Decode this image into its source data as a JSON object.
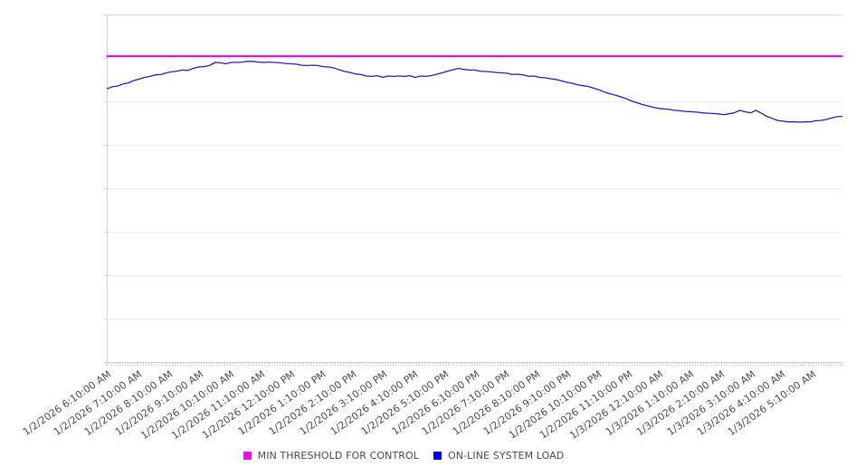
{
  "chart_data": {
    "type": "line",
    "title": "",
    "xlabel": "",
    "ylabel": "",
    "legend_position": "bottom",
    "grid": "horizontal",
    "y_axis": {
      "labels_visible": false,
      "min": 0,
      "max": 100,
      "gridline_step": 12.5
    },
    "x_labels": [
      "1/2/2026 6:10:00 AM",
      "1/2/2026 7:10:00 AM",
      "1/2/2026 8:10:00 AM",
      "1/2/2026 9:10:00 AM",
      "1/2/2026 10:10:00 AM",
      "1/2/2026 11:10:00 AM",
      "1/2/2026 12:10:00 PM",
      "1/2/2026 1:10:00 PM",
      "1/2/2026 2:10:00 PM",
      "1/2/2026 3:10:00 PM",
      "1/2/2026 4:10:00 PM",
      "1/2/2026 5:10:00 PM",
      "1/2/2026 6:10:00 PM",
      "1/2/2026 7:10:00 PM",
      "1/2/2026 8:10:00 PM",
      "1/2/2026 9:10:00 PM",
      "1/2/2026 10:10:00 PM",
      "1/2/2026 11:10:00 PM",
      "1/3/2026 12:10:00 AM",
      "1/3/2026 1:10:00 AM",
      "1/3/2026 2:10:00 AM",
      "1/3/2026 3:10:00 AM",
      "1/3/2026 4:10:00 AM",
      "1/3/2026 5:10:00 AM"
    ],
    "series": [
      {
        "name": "MIN THRESHOLD FOR CONTROL",
        "type": "threshold",
        "color": "#e600e6",
        "legend_color": "#ff00ff",
        "value": 88.0
      },
      {
        "name": "ON-LINE SYSTEM LOAD",
        "type": "line",
        "color": "#2222b8",
        "legend_color": "#0000ee",
        "values": [
          78.6,
          79.2,
          79.4,
          80.0,
          80.3,
          81.0,
          81.4,
          81.9,
          82.2,
          82.6,
          82.7,
          83.2,
          83.5,
          83.7,
          84.0,
          83.9,
          84.5,
          84.9,
          85.0,
          85.3,
          86.2,
          86.1,
          85.8,
          86.2,
          86.2,
          86.3,
          86.5,
          86.5,
          86.3,
          86.2,
          86.3,
          86.2,
          86.1,
          85.9,
          85.8,
          85.7,
          85.4,
          85.3,
          85.4,
          85.3,
          85.0,
          84.9,
          84.6,
          84.1,
          83.6,
          83.3,
          82.9,
          82.7,
          82.3,
          82.2,
          82.4,
          81.9,
          82.3,
          82.2,
          82.3,
          82.2,
          82.4,
          81.9,
          82.3,
          82.2,
          82.4,
          82.8,
          83.2,
          83.7,
          84.1,
          84.5,
          84.2,
          84.0,
          84.0,
          83.7,
          83.6,
          83.5,
          83.3,
          83.2,
          83.1,
          82.7,
          82.8,
          82.6,
          82.2,
          82.3,
          81.9,
          81.8,
          81.5,
          81.3,
          80.9,
          80.5,
          80.2,
          79.8,
          79.5,
          79.3,
          78.8,
          78.3,
          77.7,
          77.2,
          76.8,
          76.3,
          75.8,
          75.1,
          74.6,
          74.1,
          73.7,
          73.3,
          73.0,
          72.8,
          72.7,
          72.4,
          72.3,
          72.1,
          72.0,
          71.9,
          71.7,
          71.6,
          71.5,
          71.4,
          71.2,
          71.4,
          71.7,
          72.4,
          72.0,
          71.7,
          72.4,
          71.6,
          70.7,
          70.1,
          69.5,
          69.3,
          69.1,
          69.1,
          69.0,
          69.1,
          69.1,
          69.4,
          69.5,
          69.8,
          70.2,
          70.6,
          70.7
        ]
      }
    ],
    "colors": {
      "axis": "#cfcfcf",
      "gridline": "#ececec",
      "tick": "#d6d6d6",
      "label_text": "#4d4d4d"
    }
  }
}
